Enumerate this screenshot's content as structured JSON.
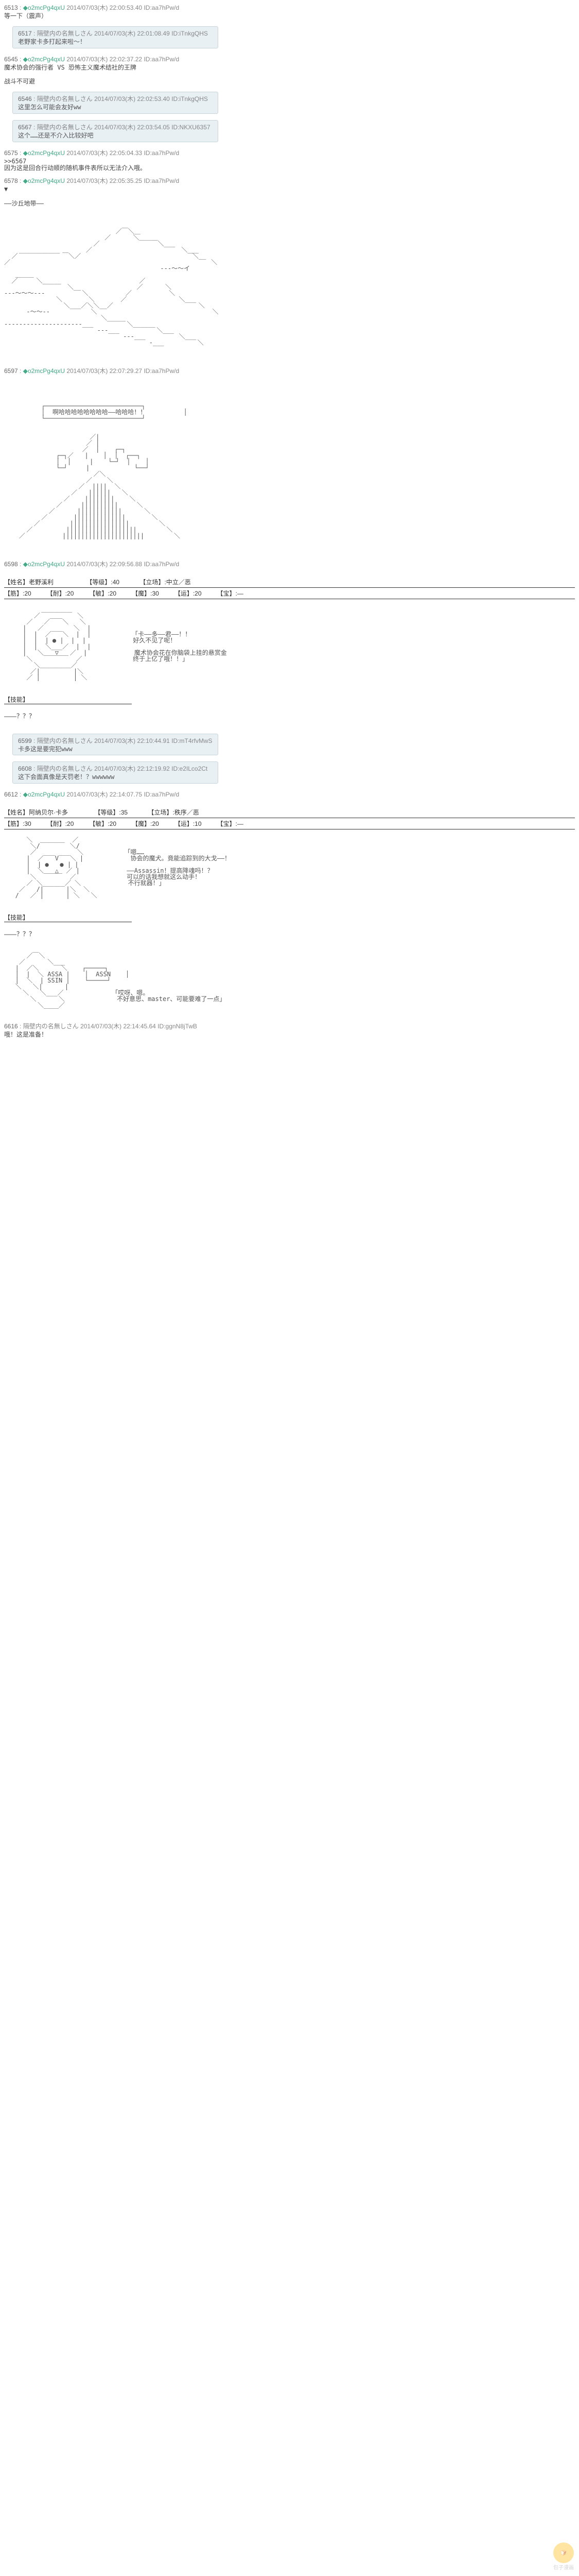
{
  "posts": [
    {
      "num": "6513",
      "trip": "◆o2mcPg4qxU",
      "date": "2014/07/03(木) 22:00:53.40",
      "id": "ID:aa7hPw/d",
      "body": "等一下（震声）"
    },
    {
      "reply": true,
      "num": "6517",
      "name": "隔壁内の名無しさん",
      "date": "2014/07/03(木) 22:01:08.49",
      "id": "ID:iTnkgQHS",
      "body": "老野家卡多打起来啦～！"
    },
    {
      "num": "6545",
      "trip": "◆o2mcPg4qxU",
      "date": "2014/07/03(木) 22:02:37.22",
      "id": "ID:aa7hPw/d",
      "body": "魔术协会的强行者 VS 恐怖主义魔术结社的王牌\n\n战斗不可避"
    },
    {
      "reply": true,
      "num": "6546",
      "name": "隔壁内の名無しさん",
      "date": "2014/07/03(木) 22:02:53.40",
      "id": "ID:iTnkgQHS",
      "body": "这里怎么可能会友好ww"
    },
    {
      "reply": true,
      "num": "6567",
      "name": "隔壁内の名無しさん",
      "date": "2014/07/03(木) 22:03:54.05",
      "id": "ID:NKXU6357",
      "body": "这个……还是不介入比较好吧"
    },
    {
      "num": "6575",
      "trip": "◆o2mcPg4qxU",
      "date": "2014/07/03(木) 22:05:04.33",
      "id": "ID:aa7hPw/d",
      "body": ">>6567\n因为这是回合行动顺的随机事件表所以无法介入哦。"
    },
    {
      "num": "6578",
      "trip": "◆o2mcPg4qxU",
      "date": "2014/07/03(木) 22:05:35.25",
      "id": "ID:aa7hPw/d",
      "body": "▼\n\n――沙丘地带――"
    }
  ],
  "aa_landscape": {
    "header_num": "6578",
    "continues": true,
    "lines": [
      "                                                       ",
      "                              ／￣＼＿                   ",
      "                           ／      ＼＿＿               ",
      "                        ／              ￣＼___          ",
      "    ___________       ／                        ＼___     ",
      "  ／            ￣＼／                              ＼__  ",
      "／                                                      ＼",
      "                                          ---～～イ       ",
      "   ＿＿＿                                                  ",
      "  ／     ＼_____                     ／                    ",
      "                 ＼__               ／      ＼             ",
      "---～～～---          ＼          ／          ＼           ",
      "              ＼       ＼       ／              ＼___      ",
      "                ＼___／＼＼__／                       ＼   ",
      "      -～～--           ＼                               ＼",
      "                          ＼_____                          ",
      "---------------------___         ＼______                  ",
      "                         ---___          ＼___             ",
      "                                ---___         ＼___       ",
      "                                       -___         ＼     "
    ]
  },
  "post_6597": {
    "num": "6597",
    "trip": "◆o2mcPg4qxU",
    "date": "2014/07/03(木) 22:07:29.27",
    "id": "ID:aa7hPw/d"
  },
  "aa_speech": {
    "bubble_top": "┌──────────────────────────┐",
    "bubble_text": "│  啊哈哈哈哈哈哈哈哈——哈哈哈！！          │",
    "bubble_bottom": "└──────────────────────────┘",
    "building": [
      "                       ／|                                 ",
      "                      ／ |                                 ",
      "                     ／  |    ┌─┐                        ",
      "              ┌─┐／   |    │  │  ┌──┐              ",
      "              │  │     |    └─┘  │    │              ",
      "              └─┘     |            └──┘              ",
      "                        ／＼                                ",
      "                      ／    ＼                              ",
      "                    ／  ||||  ＼                            ",
      "                  ／   ||||||   ＼                          ",
      "                ／    ||||||||    ＼                        ",
      "              ／     ||||||||||     ＼                      ",
      "            ／      ||||||||||||      ＼                    ",
      "          ／       ||||||||||||||       ＼                  ",
      "        ／        ||||||||||||||||        ＼                ",
      "      ／         |||||||||||||||||||        ＼              ",
      "    ／          ||||||||||||||||||||||        ＼            "
    ]
  },
  "post_6598": {
    "num": "6598",
    "trip": "◆o2mcPg4qxU",
    "date": "2014/07/03(木) 22:09:56.88",
    "id": "ID:aa7hPw/d"
  },
  "char1_stats": {
    "name_label": "【姓名】",
    "name": "老野溪利",
    "level_label": "【等级】",
    "level": ":40",
    "align_label": "【立场】",
    "align": ":中立／恶",
    "row2": [
      {
        "label": "【筋】",
        "val": ":20"
      },
      {
        "label": "【耐】",
        "val": ":20"
      },
      {
        "label": "【敏】",
        "val": ":20"
      },
      {
        "label": "【魔】",
        "val": ":30"
      },
      {
        "label": "【运】",
        "val": ":20"
      },
      {
        "label": "【宝】",
        "val": ":―"
      }
    ]
  },
  "char1_dialogue": [
    "「卡――多――君――！！",
    "　好久不见了呢！",
    "",
    "　魔术协会花在你脑袋上挂的悬赏金",
    "　终于上亿了哦！！」"
  ],
  "char1_skill_header": "【技能】",
  "char1_skill_body": "――？？？",
  "reply_6599": {
    "reply": true,
    "num": "6599",
    "name": "隔壁内の名無しさん",
    "date": "2014/07/03(木) 22:10:44.91",
    "id": "ID:mT4rfvMwS",
    "body": "卡多这是要完犯www"
  },
  "reply_6608": {
    "reply": true,
    "num": "6608",
    "name": "隔壁内の名無しさん",
    "date": "2014/07/03(木) 22:12:19.92",
    "id": "ID:e2ILco2Ct",
    "body": "这下会面真像是天罚老！？wwwwww"
  },
  "post_6612": {
    "num": "6612",
    "trip": "◆o2mcPg4qxU",
    "date": "2014/07/03(木) 22:14:07.75",
    "id": "ID:aa7hPw/d"
  },
  "char2_stats": {
    "name_label": "【姓名】",
    "name": "阿纳贝尔·卡多",
    "level_label": "【等级】",
    "level": ":35",
    "align_label": "【立场】",
    "align": ":秩序／恶",
    "row2": [
      {
        "label": "【筋】",
        "val": ":30"
      },
      {
        "label": "【耐】",
        "val": ":20"
      },
      {
        "label": "【敏】",
        "val": ":20"
      },
      {
        "label": "【魔】",
        "val": ":20"
      },
      {
        "label": "【运】",
        "val": ":10"
      },
      {
        "label": "【宝】",
        "val": ":―"
      }
    ]
  },
  "char2_dialogue": [
    "「嗯……",
    "　协会的魔犬。竟能追踪到的大戈――！",
    "",
    "　――Assassin！提高降魂吗！？",
    "　可以的话我想就这么动手！",
    "　不行就器！」"
  ],
  "char2_skill_header": "【技能】",
  "char2_skill_body": "――？？？",
  "aa_assassin": {
    "lines": [
      "      ／￣＼                                               ",
      "    ／      ＼___                                          ",
      "   |  ／＼      ＼    ┌─────┐                       ",
      "   |  |  ＼ ASSA |    │  ASSN    │                        ",
      "   |  ＼  | SSIN |    └─────┘                       ",
      "   ＼   ＼|      |                                          ",
      "     ＼   ＼___／             「哎呀、嗯。                  ",
      "       ＼      ＼              不好意思、master、可能要难了一点」",
      "         ＼____／                                          "
    ]
  },
  "post_6616": {
    "num": "6616",
    "name": "隔壁内の名無しさん",
    "date": "2014/07/03(木) 22:14:45.64",
    "id": "ID:ggnN8jTwB",
    "body": "哦！这是准备！"
  },
  "footer_text": "包子漫画",
  "colors": {
    "reply_bg": "#e8f0f4",
    "reply_border": "#c8d4dc",
    "text": "#444444",
    "meta": "#888888",
    "logo": "#ffcc44"
  }
}
